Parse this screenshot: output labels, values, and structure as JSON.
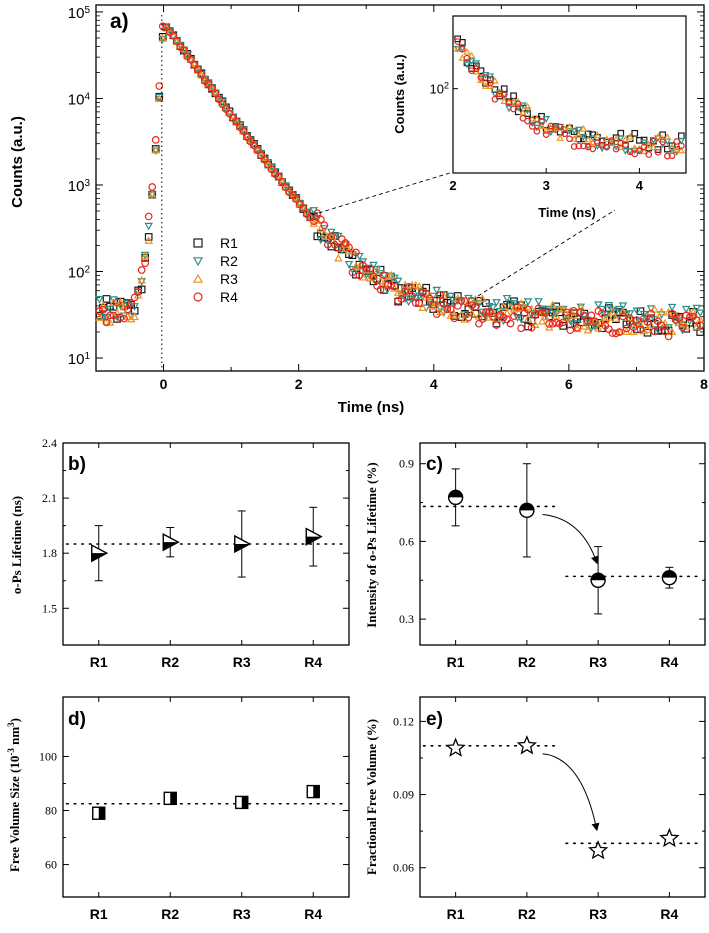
{
  "colors": {
    "R1": "#1a1a1a",
    "R2": "#2a8f8a",
    "R3": "#f0921e",
    "R4": "#e8261e"
  },
  "chart_data": [
    {
      "id": "a",
      "panel_label": "a)",
      "type": "scatter",
      "yscale": "log",
      "xlabel": "Time (ns)",
      "ylabel": "Counts (a.u.)",
      "xlim": [
        -1,
        8
      ],
      "ylim_exp": [
        0.85,
        5.08
      ],
      "xticks": [
        {
          "v": 0,
          "label": "0"
        },
        {
          "v": 2,
          "label": "2"
        },
        {
          "v": 4,
          "label": "4"
        },
        {
          "v": 6,
          "label": "6"
        },
        {
          "v": 8,
          "label": "8"
        }
      ],
      "yticks": [
        {
          "exp": 1,
          "base": "10",
          "sup": "1"
        },
        {
          "exp": 2,
          "base": "10",
          "sup": "2"
        },
        {
          "exp": 3,
          "base": "10",
          "sup": "3"
        },
        {
          "exp": 4,
          "base": "10",
          "sup": "4"
        },
        {
          "exp": 5,
          "base": "10",
          "sup": "5"
        }
      ],
      "legend": {
        "position": "center-left",
        "entries": [
          "R1",
          "R2",
          "R3",
          "R4"
        ]
      },
      "model": {
        "baseline_before_peak": 35,
        "peak_time": 0.0,
        "peak_counts": 75000,
        "fast_decay_per_ns": 2.45,
        "tail_amplitude": 150,
        "tail_decay_per_ns": 0.55,
        "background": 24,
        "rise_start": -0.5
      },
      "series": [
        {
          "name": "R1",
          "marker": "square"
        },
        {
          "name": "R2",
          "marker": "triangle-down"
        },
        {
          "name": "R3",
          "marker": "triangle-up"
        },
        {
          "name": "R4",
          "marker": "circle"
        }
      ],
      "inset": {
        "type": "scatter",
        "yscale": "log",
        "xlabel": "Time (ns)",
        "ylabel": "Counts (a.u.)",
        "xlim": [
          2,
          4.5
        ],
        "ylim": [
          20,
          400
        ],
        "xticks": [
          {
            "v": 2,
            "label": "2"
          },
          {
            "v": 3,
            "label": "3"
          },
          {
            "v": 4,
            "label": "4"
          }
        ],
        "yticks": [
          {
            "v": 100,
            "base": "10",
            "sup": "2"
          }
        ]
      }
    },
    {
      "id": "b",
      "panel_label": "b)",
      "type": "scatter",
      "xlabel": "",
      "ylabel": "o-Ps Lifetime (ns)",
      "categories": [
        "R1",
        "R2",
        "R3",
        "R4"
      ],
      "values": [
        1.8,
        1.86,
        1.85,
        1.89
      ],
      "errors": [
        0.15,
        0.08,
        0.18,
        0.16
      ],
      "ylim": [
        1.3,
        2.4
      ],
      "yticks": [
        {
          "v": 1.5,
          "label": "1.5"
        },
        {
          "v": 1.8,
          "label": "1.8"
        },
        {
          "v": 2.1,
          "label": "2.1"
        },
        {
          "v": 2.4,
          "label": "2.4"
        }
      ],
      "marker": "triangle-right-half",
      "reference_lines": [
        {
          "value": 1.85,
          "from": "R1",
          "to": "R4"
        }
      ]
    },
    {
      "id": "c",
      "panel_label": "c)",
      "type": "scatter",
      "xlabel": "",
      "ylabel": "Intensity of o-Ps Lifetime (%)",
      "categories": [
        "R1",
        "R2",
        "R3",
        "R4"
      ],
      "values": [
        0.77,
        0.72,
        0.45,
        0.46
      ],
      "errors": [
        0.11,
        0.18,
        0.13,
        0.04
      ],
      "ylim": [
        0.2,
        0.98
      ],
      "yticks": [
        {
          "v": 0.3,
          "label": "0.3"
        },
        {
          "v": 0.6,
          "label": "0.6"
        },
        {
          "v": 0.9,
          "label": "0.9"
        }
      ],
      "marker": "circle-half",
      "reference_lines": [
        {
          "value": 0.735,
          "from": "R1",
          "to": "R2"
        },
        {
          "value": 0.465,
          "from": "R3",
          "to": "R4"
        }
      ],
      "annotation": {
        "type": "arrow",
        "from": "R2",
        "to": "R3"
      }
    },
    {
      "id": "d",
      "panel_label": "d)",
      "type": "scatter",
      "xlabel": "",
      "ylabel": "Free Volume Size (10",
      "ylabel_sup": "-3",
      "ylabel_mid": " nm",
      "ylabel_sup2": "3",
      "ylabel_end": ")",
      "categories": [
        "R1",
        "R2",
        "R3",
        "R4"
      ],
      "values": [
        79,
        84.5,
        83,
        87
      ],
      "errors": [
        0,
        0,
        0,
        0
      ],
      "ylim": [
        48,
        122
      ],
      "yticks": [
        {
          "v": 60,
          "label": "60"
        },
        {
          "v": 80,
          "label": "80"
        },
        {
          "v": 100,
          "label": "100"
        }
      ],
      "marker": "square-half",
      "reference_lines": [
        {
          "value": 82.5,
          "from": "R1",
          "to": "R4"
        }
      ]
    },
    {
      "id": "e",
      "panel_label": "e)",
      "type": "scatter",
      "xlabel": "",
      "ylabel": "Fractional Free Volume  (%)",
      "categories": [
        "R1",
        "R2",
        "R3",
        "R4"
      ],
      "values": [
        0.109,
        0.11,
        0.067,
        0.072
      ],
      "errors": [
        0,
        0,
        0,
        0
      ],
      "ylim": [
        0.048,
        0.13
      ],
      "yticks": [
        {
          "v": 0.06,
          "label": "0.06"
        },
        {
          "v": 0.09,
          "label": "0.09"
        },
        {
          "v": 0.12,
          "label": "0.12"
        }
      ],
      "marker": "star",
      "reference_lines": [
        {
          "value": 0.11,
          "from": "R1",
          "to": "R2"
        },
        {
          "value": 0.07,
          "from": "R3",
          "to": "R4"
        }
      ],
      "annotation": {
        "type": "arrow",
        "from": "R2",
        "to": "R3"
      }
    }
  ]
}
